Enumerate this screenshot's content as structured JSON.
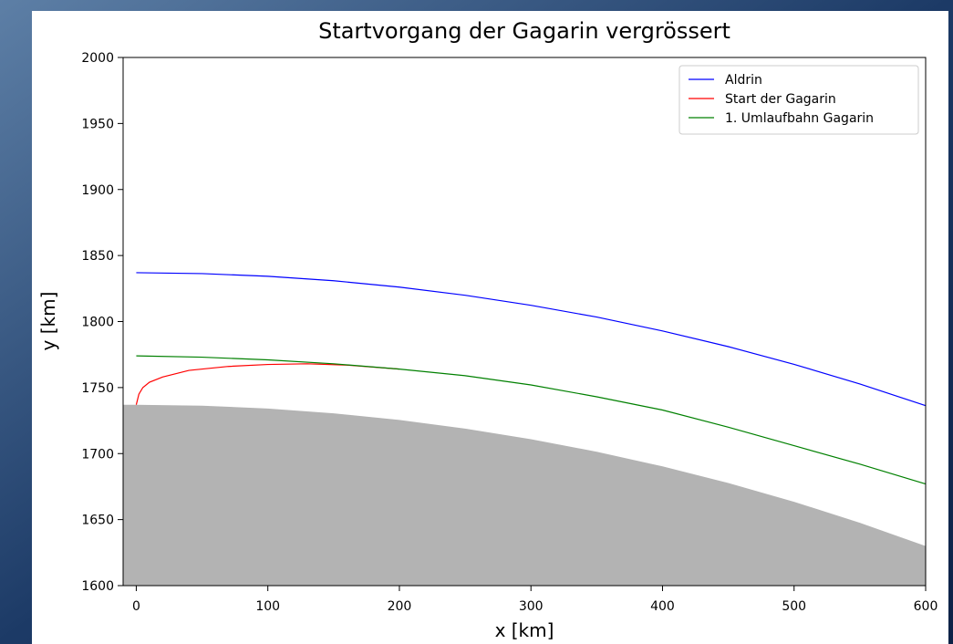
{
  "chart_data": {
    "type": "line",
    "title": "Startvorgang der Gagarin vergrössert",
    "xlabel": "x [km]",
    "ylabel": "y [km]",
    "xlim": [
      -10,
      600
    ],
    "ylim": [
      1600,
      2000
    ],
    "xticks": [
      0,
      100,
      200,
      300,
      400,
      500,
      600
    ],
    "yticks": [
      1600,
      1650,
      1700,
      1750,
      1800,
      1850,
      1900,
      1950,
      2000
    ],
    "legend": "upper right",
    "series": [
      {
        "name": "Aldrin",
        "color": "#0000ff",
        "x": [
          0,
          50,
          100,
          150,
          200,
          250,
          300,
          350,
          400,
          450,
          500,
          550,
          600
        ],
        "values": [
          1837,
          1836.3,
          1834.3,
          1830.9,
          1826.1,
          1819.9,
          1812.3,
          1803.4,
          1792.9,
          1781,
          1767.6,
          1752.7,
          1736.3
        ]
      },
      {
        "name": "Start der Gagarin",
        "color": "#ff0000",
        "x": [
          0,
          2,
          5,
          10,
          20,
          40,
          70,
          100,
          130,
          160,
          200
        ],
        "values": [
          1737,
          1745,
          1750,
          1754,
          1758,
          1763,
          1766,
          1767.5,
          1768,
          1767,
          1764
        ]
      },
      {
        "name": "1. Umlaufbahn Gagarin",
        "color": "#008000",
        "x": [
          0,
          50,
          100,
          150,
          200,
          250,
          300,
          350,
          400,
          450,
          500,
          550,
          600
        ],
        "values": [
          1774,
          1773,
          1771,
          1768,
          1764,
          1759,
          1752,
          1743,
          1733,
          1720,
          1706,
          1692,
          1677
        ]
      }
    ],
    "surface": {
      "color": "#b3b3b3",
      "x": [
        -10,
        0,
        50,
        100,
        150,
        200,
        250,
        300,
        350,
        400,
        450,
        500,
        550,
        600
      ],
      "values": [
        1737,
        1737,
        1736.3,
        1734.1,
        1730.5,
        1725.5,
        1718.9,
        1710.9,
        1701.4,
        1690.3,
        1677.7,
        1663.5,
        1647.6,
        1630
      ]
    }
  }
}
